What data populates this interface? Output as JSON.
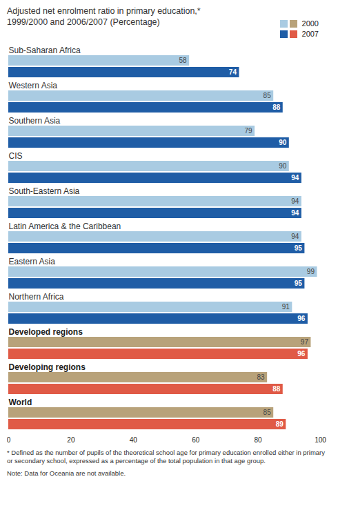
{
  "chart_data": {
    "type": "bar",
    "orientation": "horizontal",
    "title": "Adjusted net enrolment ratio in primary education,* 1999/2000 and 2006/2007 (Percentage)",
    "categories": [
      "Sub-Saharan Africa",
      "Western Asia",
      "Southern Asia",
      "CIS",
      "South-Eastern Asia",
      "Latin America & the Caribbean",
      "Eastern Asia",
      "Northern Africa",
      "Developed regions",
      "Developing regions",
      "World"
    ],
    "series": [
      {
        "name": "2000",
        "values": [
          58,
          85,
          79,
          90,
          94,
          94,
          99,
          91,
          97,
          83,
          85
        ],
        "colors": [
          "#a9cbe2",
          "#a9cbe2",
          "#a9cbe2",
          "#a9cbe2",
          "#a9cbe2",
          "#a9cbe2",
          "#a9cbe2",
          "#a9cbe2",
          "#b8a27a",
          "#b8a27a",
          "#b8a27a"
        ]
      },
      {
        "name": "2007",
        "values": [
          74,
          88,
          90,
          94,
          94,
          95,
          95,
          96,
          96,
          88,
          89
        ],
        "colors": [
          "#1f5da6",
          "#1f5da6",
          "#1f5da6",
          "#1f5da6",
          "#1f5da6",
          "#1f5da6",
          "#1f5da6",
          "#1f5da6",
          "#e05a46",
          "#e05a46",
          "#e05a46"
        ]
      }
    ],
    "xlim": [
      0,
      100
    ],
    "xticks": [
      0,
      20,
      40,
      60,
      80,
      100
    ],
    "grid": false,
    "legend": "top-right",
    "data_labels": true,
    "annotations": [
      "* Defined as the number of pupils of the theoretical school age for primary education enrolled either in primary or secondary school, expressed as a percentage of the total population in that age group.",
      "Note: Data for Oceania are not available."
    ]
  }
}
